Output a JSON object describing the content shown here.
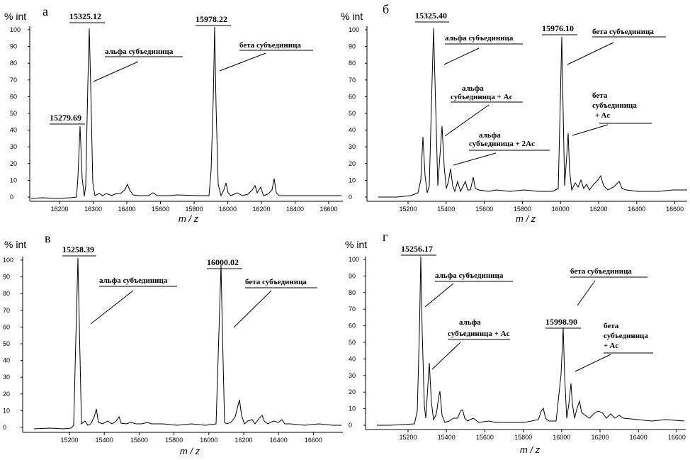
{
  "chart_data": [
    {
      "type": "line",
      "panel_letter": "а",
      "y_unit": "% int",
      "xlabel": "m / z",
      "xlim": [
        16040,
        16650
      ],
      "ylim": [
        0,
        100
      ],
      "x_ticks": [
        "16200",
        "16300",
        "16400",
        "15600",
        "15800",
        "16000",
        "16200",
        "16400",
        "16600"
      ],
      "y_ticks": [
        0,
        10,
        20,
        30,
        40,
        50,
        60,
        70,
        80,
        90,
        100
      ],
      "peaks": [
        {
          "x": 15279.69,
          "y": 42,
          "label": "15279.69"
        },
        {
          "x": 15325.12,
          "y": 100,
          "label": "15325.12"
        },
        {
          "x": 15978.22,
          "y": 100,
          "label": "15978.22"
        }
      ],
      "annotations": [
        {
          "text": "альфа субъединица"
        },
        {
          "text": "бета субъединица"
        }
      ]
    },
    {
      "type": "line",
      "panel_letter": "б",
      "y_unit": "% int",
      "xlabel": "m / z",
      "xlim": [
        15030,
        16650
      ],
      "ylim": [
        0,
        100
      ],
      "x_ticks": [
        "15200",
        "15400",
        "15600",
        "15800",
        "16000",
        "16200",
        "16400",
        "16600"
      ],
      "y_ticks": [
        0,
        10,
        20,
        30,
        40,
        50,
        60,
        70,
        80,
        90,
        100
      ],
      "peaks": [
        {
          "x": 15325.4,
          "y": 100,
          "label": "15325.40"
        },
        {
          "x": 15976.1,
          "y": 95,
          "label": "15976.10"
        }
      ],
      "annotations": [
        {
          "text": "альфа субъединица"
        },
        {
          "text": "альфа"
        },
        {
          "text": "субъединица + Ac"
        },
        {
          "text": "альфа"
        },
        {
          "text": "субъединица + 2Ac"
        },
        {
          "text": "бета субъединица"
        },
        {
          "text": "бета"
        },
        {
          "text": "субъединица"
        },
        {
          "text": "+ Ac"
        }
      ]
    },
    {
      "type": "line",
      "panel_letter": "в",
      "y_unit": "% int",
      "xlabel": "m / z",
      "xlim": [
        15030,
        16650
      ],
      "ylim": [
        0,
        100
      ],
      "x_ticks": [
        "15200",
        "15400",
        "15600",
        "15800",
        "16000",
        "16200",
        "16400",
        "16600"
      ],
      "y_ticks": [
        0,
        10,
        20,
        30,
        40,
        50,
        60,
        70,
        80,
        90,
        100
      ],
      "peaks": [
        {
          "x": 15258.39,
          "y": 100,
          "label": "15258.39"
        },
        {
          "x": 16000.02,
          "y": 96,
          "label": "16000.02"
        }
      ],
      "annotations": [
        {
          "text": "альфа субъединица"
        },
        {
          "text": "бета субъединица"
        }
      ]
    },
    {
      "type": "line",
      "panel_letter": "г",
      "y_unit": "% int",
      "xlabel": "m / z",
      "xlim": [
        15030,
        16650
      ],
      "ylim": [
        0,
        100
      ],
      "x_ticks": [
        "15200",
        "15400",
        "15600",
        "15800",
        "16000",
        "16200",
        "16400",
        "16600"
      ],
      "y_ticks": [
        0,
        10,
        20,
        30,
        40,
        50,
        60,
        70,
        80,
        90,
        100
      ],
      "peaks": [
        {
          "x": 15256.17,
          "y": 100,
          "label": "15256.17"
        },
        {
          "x": 15998.9,
          "y": 59,
          "label": "15998.90"
        }
      ],
      "annotations": [
        {
          "text": "альфа субъединица"
        },
        {
          "text": "альфа"
        },
        {
          "text": "субъединица + Ac"
        },
        {
          "text": "бета субъединица"
        },
        {
          "text": "бета"
        },
        {
          "text": "субъединица"
        },
        {
          "text": "+ Ac"
        }
      ]
    }
  ]
}
